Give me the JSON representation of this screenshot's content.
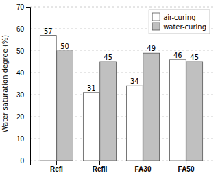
{
  "chart_data": {
    "type": "bar",
    "categories": [
      "RefI",
      "RefII",
      "FA30",
      "FA50"
    ],
    "series": [
      {
        "name": "air-curing",
        "color": "#ffffff",
        "values": [
          57,
          31,
          34,
          46
        ]
      },
      {
        "name": "water-curing",
        "color": "#c0c0c0",
        "values": [
          50,
          45,
          49,
          45
        ]
      }
    ],
    "ylabel": "Water saturation degree (%)",
    "ylim": [
      0,
      70
    ],
    "yticks": [
      0,
      10,
      20,
      30,
      40,
      50,
      60,
      70
    ],
    "grid": true,
    "legend": "upper right",
    "data_labels": true
  }
}
